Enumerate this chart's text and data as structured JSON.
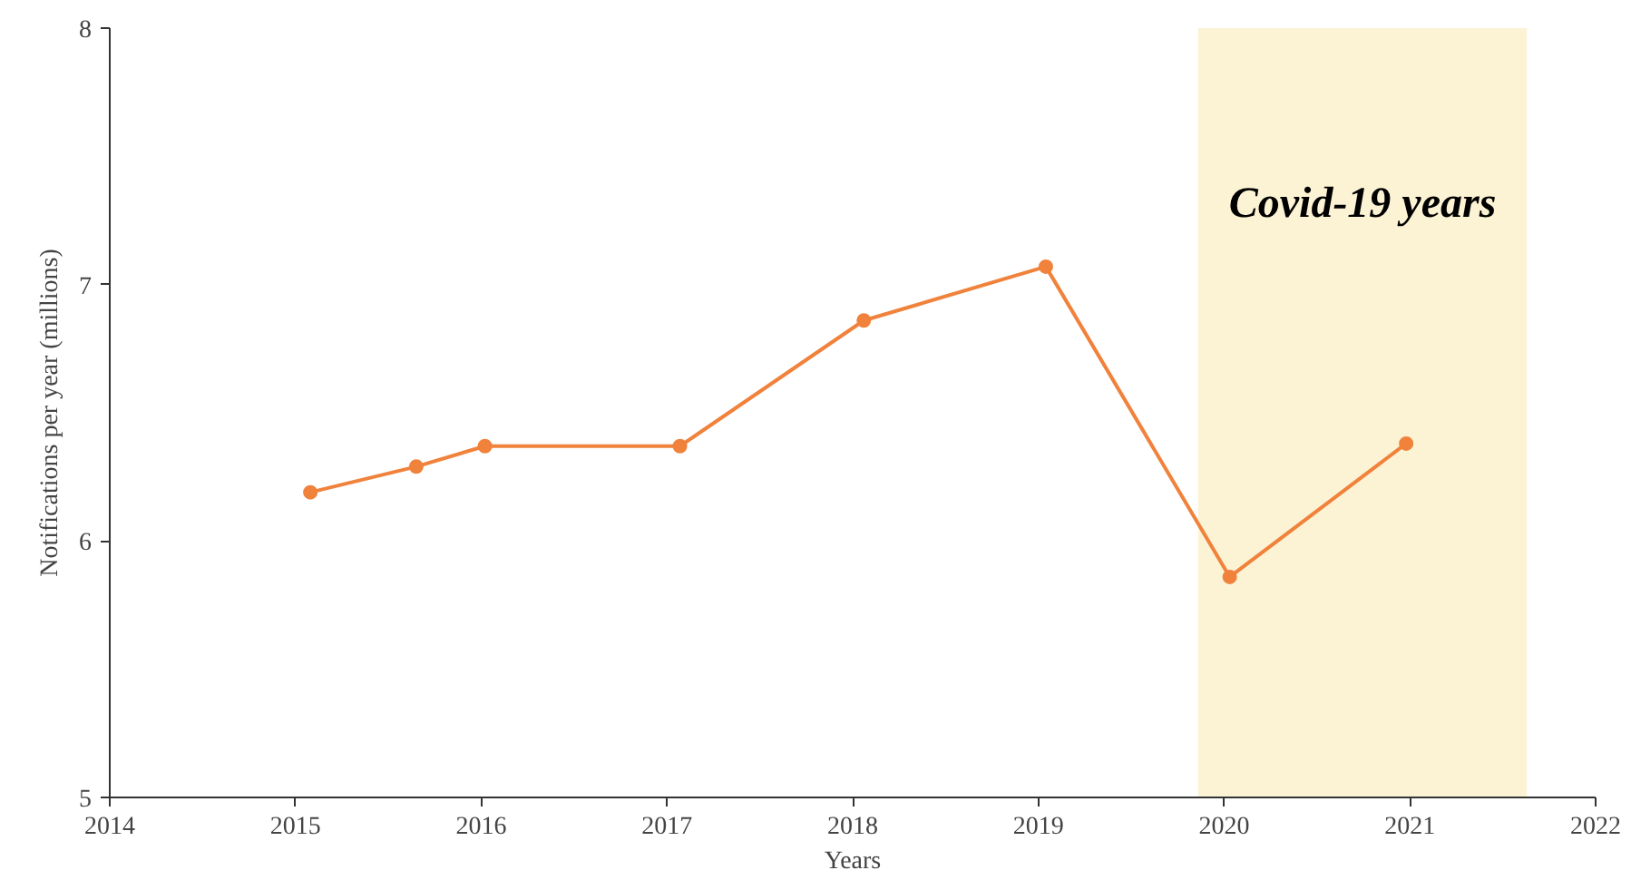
{
  "chart_data": {
    "type": "line",
    "xlabel": "Years",
    "ylabel": "Notifications per year (millions)",
    "xlim": [
      2014,
      2022
    ],
    "xticks": [
      2014,
      2015,
      2016,
      2017,
      2018,
      2019,
      2020,
      2021,
      2022
    ],
    "ylim": [
      5,
      8
    ],
    "yticks": [
      5,
      6,
      7,
      8
    ],
    "series": [
      {
        "color": "#f0823c",
        "x": [
          2015.08,
          2015.65,
          2016.02,
          2017.07,
          2018.06,
          2019.04,
          2020.03,
          2020.98
        ],
        "values": [
          6.19,
          6.29,
          6.37,
          6.37,
          6.86,
          7.07,
          5.86,
          6.38
        ]
      }
    ],
    "bands": [
      {
        "axis": "x",
        "from": 2019.86,
        "to": 2021.63,
        "label": "Covid-19 years",
        "color": "#fcf3d4"
      }
    ],
    "marker": "circle"
  }
}
